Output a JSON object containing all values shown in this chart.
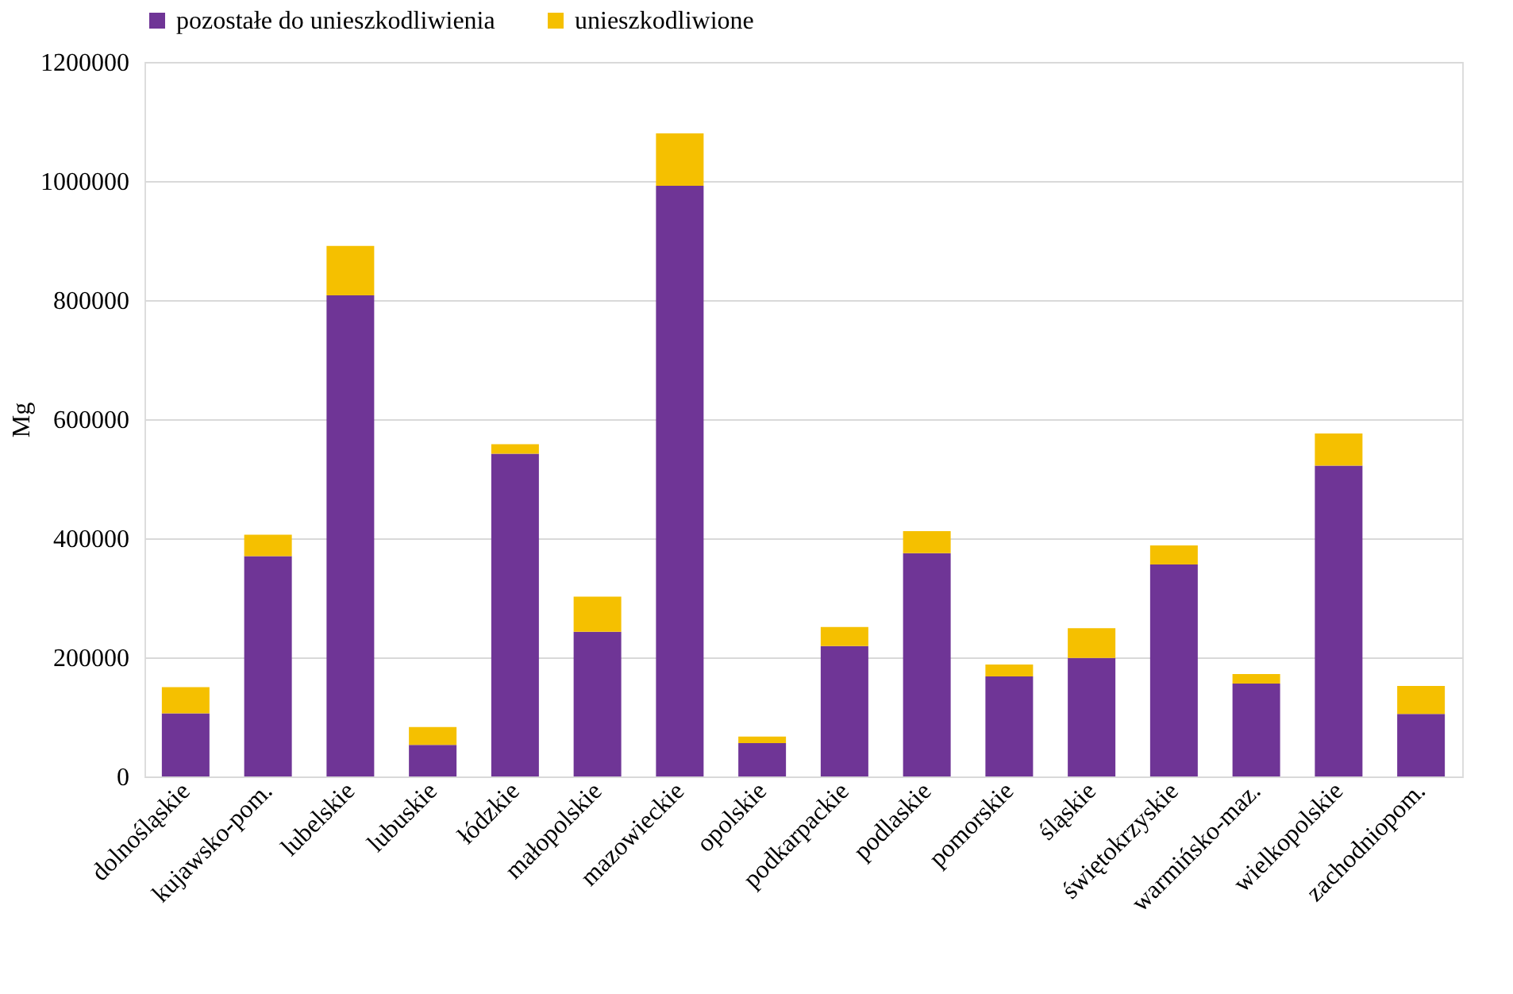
{
  "chart_data": {
    "type": "bar",
    "stacked": true,
    "ylabel": "Mg",
    "categories": [
      "dolnośląskie",
      "kujawsko-pom.",
      "lubelskie",
      "lubuskie",
      "łódzkie",
      "małopolskie",
      "mazowieckie",
      "opolskie",
      "podkarpackie",
      "podlaskie",
      "pomorskie",
      "śląskie",
      "świętokrzyskie",
      "warmińsko-maz.",
      "wielkopolskie",
      "zachodniopom."
    ],
    "series": [
      {
        "name": "pozostałe do unieszkodliwienia",
        "color": "#6f3596",
        "values": [
          106000,
          370000,
          808000,
          53000,
          542000,
          243000,
          992000,
          56000,
          219000,
          375000,
          168000,
          199000,
          356000,
          156000,
          522000,
          105000
        ]
      },
      {
        "name": "unieszkodliwione",
        "color": "#f5c000",
        "values": [
          44000,
          36000,
          83000,
          30000,
          16000,
          59000,
          88000,
          11000,
          32000,
          37000,
          20000,
          50000,
          32000,
          16000,
          54000,
          47000
        ]
      }
    ],
    "ylim": [
      0,
      1200000
    ],
    "yticks": [
      0,
      200000,
      400000,
      600000,
      800000,
      1000000,
      1200000
    ],
    "grid": "y",
    "legend": "top"
  }
}
